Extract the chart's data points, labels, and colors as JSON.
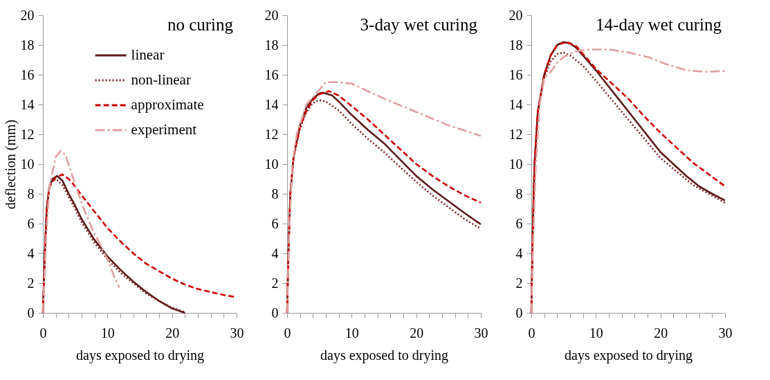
{
  "chart_data": [
    {
      "type": "line",
      "title": "no curing",
      "xlabel": "days exposed to drying",
      "ylabel": "deflection (mm)",
      "xlim": [
        0,
        30
      ],
      "ylim": [
        0,
        20
      ],
      "xticks": [
        0,
        {
          "value": 2,
          "label": null
        },
        {
          "value": 4,
          "label": null
        },
        {
          "value": 6,
          "label": null
        },
        {
          "value": 8,
          "label": null
        },
        10,
        {
          "value": 12,
          "label": null
        },
        {
          "value": 14,
          "label": null
        },
        {
          "value": 16,
          "label": null
        },
        {
          "value": 18,
          "label": null
        },
        20,
        {
          "value": 22,
          "label": null
        },
        {
          "value": 24,
          "label": null
        },
        {
          "value": 26,
          "label": null
        },
        {
          "value": 28,
          "label": null
        },
        30
      ],
      "yticks": [
        0,
        2,
        4,
        6,
        8,
        10,
        12,
        14,
        16,
        18,
        20
      ],
      "grid": false,
      "legend": "top",
      "series": [
        {
          "name": "linear",
          "color": "#5c1a1a",
          "line_style": "solid",
          "x": [
            0,
            0.3,
            0.6,
            1,
            1.5,
            2.2,
            3,
            4,
            5,
            6,
            7,
            8,
            10,
            12,
            14,
            16,
            18,
            20,
            22
          ],
          "values": [
            0,
            4,
            7,
            8.5,
            9,
            9.2,
            8.9,
            8,
            7.2,
            6.3,
            5.6,
            4.9,
            3.8,
            2.9,
            2.1,
            1.4,
            0.8,
            0.3,
            0
          ]
        },
        {
          "name": "non-linear",
          "color": "#7a2020",
          "line_style": "dotted",
          "x": [
            0,
            0.3,
            0.6,
            1,
            1.5,
            2,
            3,
            4,
            5,
            6,
            8,
            10,
            12,
            14,
            16,
            18,
            20,
            22
          ],
          "values": [
            0,
            4,
            7,
            8.4,
            8.9,
            9,
            8.6,
            7.8,
            7,
            6.1,
            4.7,
            3.6,
            2.7,
            2,
            1.3,
            0.8,
            0.35,
            0.05
          ]
        },
        {
          "name": "approximate",
          "color": "#cc0000",
          "line_style": "dashed",
          "x": [
            0,
            0.3,
            0.6,
            1,
            2,
            3,
            4,
            5,
            6,
            8,
            10,
            12,
            14,
            16,
            18,
            20,
            22,
            24,
            26,
            28,
            30
          ],
          "values": [
            0,
            4,
            7,
            8.5,
            9.1,
            9.3,
            9,
            8.5,
            7.9,
            6.8,
            5.7,
            4.8,
            4,
            3.3,
            2.8,
            2.3,
            1.9,
            1.6,
            1.4,
            1.2,
            1.05
          ]
        },
        {
          "name": "experiment",
          "color": "#e0a0a0",
          "line_style": "dashdot",
          "x": [
            0,
            0.5,
            1,
            1.5,
            2,
            2.8,
            3.5,
            4.5,
            5.5,
            6.5,
            8,
            9,
            10,
            11,
            11.8
          ],
          "values": [
            0,
            5,
            8.5,
            9.5,
            10.5,
            10.9,
            10.6,
            9.3,
            8,
            6.8,
            5.3,
            4.5,
            3.6,
            2.5,
            1.7
          ]
        }
      ]
    },
    {
      "type": "line",
      "title": "3-day wet curing",
      "xlabel": "days exposed to drying",
      "xlim": [
        0,
        30
      ],
      "ylim": [
        0,
        20
      ],
      "xticks": [
        0,
        {
          "value": 2,
          "label": null
        },
        {
          "value": 4,
          "label": null
        },
        {
          "value": 6,
          "label": null
        },
        {
          "value": 8,
          "label": null
        },
        10,
        {
          "value": 12,
          "label": null
        },
        {
          "value": 14,
          "label": null
        },
        {
          "value": 16,
          "label": null
        },
        {
          "value": 18,
          "label": null
        },
        20,
        {
          "value": 22,
          "label": null
        },
        {
          "value": 24,
          "label": null
        },
        {
          "value": 26,
          "label": null
        },
        {
          "value": 28,
          "label": null
        },
        30
      ],
      "yticks": [
        0,
        2,
        4,
        6,
        8,
        10,
        12,
        14,
        16,
        18,
        20
      ],
      "grid": false,
      "series": [
        {
          "color": "#5c1a1a",
          "line_style": "solid",
          "x": [
            0,
            0.2,
            0.5,
            1,
            2,
            3,
            4,
            5,
            5.5,
            7,
            8,
            10,
            12.5,
            15,
            17.5,
            20,
            22.5,
            25,
            27.5,
            30
          ],
          "values": [
            0,
            4,
            8,
            10.5,
            12.6,
            13.8,
            14.4,
            14.75,
            14.8,
            14.6,
            14.2,
            13.3,
            12.3,
            11.4,
            10.3,
            9.2,
            8.3,
            7.5,
            6.7,
            5.95
          ]
        },
        {
          "color": "#7a2020",
          "line_style": "dotted",
          "x": [
            0,
            0.2,
            0.5,
            1,
            2,
            3,
            4,
            5,
            6,
            8,
            10,
            12.5,
            15,
            17.5,
            20,
            22.5,
            25,
            27.5,
            30
          ],
          "values": [
            0,
            4,
            8,
            10.4,
            12.4,
            13.5,
            14.1,
            14.3,
            14.2,
            13.6,
            12.7,
            11.7,
            10.8,
            9.8,
            8.8,
            7.9,
            7.1,
            6.3,
            5.65
          ]
        },
        {
          "color": "#cc0000",
          "line_style": "dashed",
          "x": [
            0,
            0.2,
            0.5,
            1,
            2,
            3,
            4,
            5,
            6.5,
            8,
            10,
            12.5,
            15,
            17.5,
            20,
            22.5,
            25,
            27.5,
            30
          ],
          "values": [
            0,
            4,
            8,
            10.5,
            12.5,
            13.6,
            14.3,
            14.7,
            14.9,
            14.6,
            13.9,
            13,
            12,
            11,
            10,
            9.2,
            8.5,
            7.9,
            7.4
          ]
        },
        {
          "color": "#e0a0a0",
          "line_style": "dashdot",
          "x": [
            0,
            0.3,
            0.8,
            1.5,
            3,
            5,
            6,
            8,
            10,
            12,
            15,
            20,
            25,
            30
          ],
          "values": [
            0,
            5,
            10,
            12,
            14,
            15,
            15.5,
            15.5,
            15.4,
            15,
            14.4,
            13.5,
            12.6,
            11.9
          ]
        }
      ]
    },
    {
      "type": "line",
      "title": "14-day wet curing",
      "xlabel": "days exposed to drying",
      "xlim": [
        0,
        30
      ],
      "ylim": [
        0,
        20
      ],
      "xticks": [
        0,
        {
          "value": 2,
          "label": null
        },
        {
          "value": 4,
          "label": null
        },
        {
          "value": 6,
          "label": null
        },
        {
          "value": 8,
          "label": null
        },
        10,
        {
          "value": 12,
          "label": null
        },
        {
          "value": 14,
          "label": null
        },
        {
          "value": 16,
          "label": null
        },
        {
          "value": 18,
          "label": null
        },
        20,
        {
          "value": 22,
          "label": null
        },
        {
          "value": 24,
          "label": null
        },
        {
          "value": 26,
          "label": null
        },
        {
          "value": 28,
          "label": null
        },
        30
      ],
      "yticks": [
        0,
        2,
        4,
        6,
        8,
        10,
        12,
        14,
        16,
        18,
        20
      ],
      "grid": false,
      "series": [
        {
          "color": "#5c1a1a",
          "line_style": "solid",
          "x": [
            0,
            0.2,
            0.5,
            1,
            2,
            3,
            4,
            5,
            6,
            7,
            8,
            10,
            12,
            14,
            16,
            18,
            20,
            22,
            24,
            26,
            28,
            30
          ],
          "values": [
            0,
            5,
            10,
            13.5,
            16,
            17.3,
            18,
            18.2,
            18.1,
            17.8,
            17.3,
            16.3,
            15.2,
            14.1,
            13,
            11.9,
            10.8,
            10,
            9.2,
            8.5,
            8,
            7.55
          ]
        },
        {
          "color": "#7a2020",
          "line_style": "dotted",
          "x": [
            0,
            0.2,
            0.5,
            1,
            2,
            3,
            4,
            5,
            6,
            8,
            10,
            12.5,
            15,
            17.5,
            20,
            22.5,
            25,
            27.5,
            30
          ],
          "values": [
            0,
            5,
            10,
            13.4,
            15.8,
            16.9,
            17.4,
            17.5,
            17.3,
            16.6,
            15.6,
            14.3,
            13,
            11.7,
            10.4,
            9.5,
            8.6,
            8,
            7.4
          ]
        },
        {
          "color": "#cc0000",
          "line_style": "dashed",
          "x": [
            0,
            0.2,
            0.5,
            1,
            2,
            3,
            4,
            5.5,
            7,
            8,
            10,
            12.5,
            15,
            17.5,
            20,
            22.5,
            25,
            27.5,
            30
          ],
          "values": [
            0,
            5,
            10,
            13.5,
            16,
            17.3,
            18,
            18.2,
            17.9,
            17.4,
            16.4,
            15.4,
            14.4,
            13.2,
            12.1,
            11.1,
            10.1,
            9.3,
            8.5
          ]
        },
        {
          "color": "#e0a0a0",
          "line_style": "dashdot",
          "x": [
            0,
            0.3,
            0.7,
            1.3,
            2,
            3,
            4,
            5,
            7,
            9,
            12,
            15,
            18,
            21,
            24,
            27,
            30
          ],
          "values": [
            0,
            5,
            10,
            14,
            15.8,
            16.2,
            16.8,
            17.2,
            17.6,
            17.7,
            17.7,
            17.5,
            17.2,
            16.7,
            16.3,
            16.2,
            16.25
          ]
        }
      ]
    }
  ]
}
